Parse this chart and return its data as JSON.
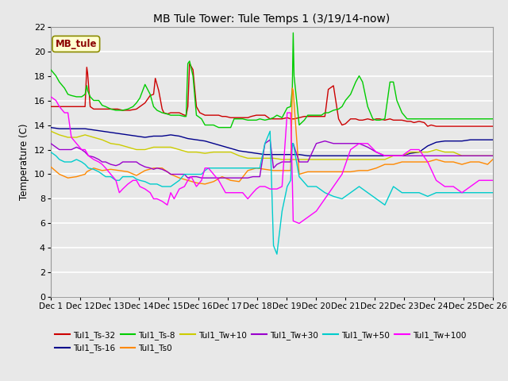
{
  "title": "MB Tule Tower: Tule Temps 1 (3/19/14-now)",
  "ylabel": "Temperature (C)",
  "xlim": [
    0,
    25.8
  ],
  "ylim": [
    0,
    22
  ],
  "yticks": [
    0,
    2,
    4,
    6,
    8,
    10,
    12,
    14,
    16,
    18,
    20,
    22
  ],
  "xtick_label_texts": [
    "Dec 1",
    "Dec 12",
    "Dec 13",
    "Dec 14",
    "Dec 15",
    "Dec 16",
    "Dec 17",
    "Dec 18",
    "Dec 19",
    "Dec 20",
    "Dec 21",
    "Dec 22",
    "Dec 23",
    "Dec 24",
    "Dec 25",
    "Dec 26"
  ],
  "bg_color": "#e8e8e8",
  "series": {
    "Tul1_Ts-32": {
      "color": "#cc0000",
      "lw": 1.0,
      "x": [
        0,
        0.5,
        0.9,
        1.2,
        1.5,
        1.7,
        2.0,
        2.1,
        2.15,
        2.3,
        2.5,
        2.7,
        3.0,
        3.2,
        3.5,
        3.6,
        3.9,
        4.2,
        4.4,
        4.6,
        5.0,
        5.2,
        5.5,
        5.8,
        6.0,
        6.1,
        6.3,
        6.5,
        6.6,
        6.8,
        7.0,
        7.2,
        7.5,
        7.8,
        7.9,
        8.0,
        8.1,
        8.3,
        8.5,
        8.7,
        9.0,
        9.2,
        9.5,
        9.8,
        10.0,
        10.2,
        10.5,
        10.7,
        11.0,
        11.2,
        11.5,
        11.7,
        12.0,
        12.2,
        12.5,
        12.8,
        13.0,
        13.2,
        13.5,
        13.8,
        14.0,
        14.2,
        14.5,
        14.8,
        15.0,
        15.2,
        15.5,
        15.8,
        16.0,
        16.2,
        16.5,
        16.8,
        17.0,
        17.2,
        17.5,
        17.8,
        18.0,
        18.2,
        18.5,
        18.8,
        19.0,
        19.2,
        19.5,
        19.8,
        20.0,
        20.2,
        20.5,
        20.8,
        21.0,
        21.2,
        21.5,
        21.8,
        22.0,
        22.2,
        22.5,
        22.8,
        23.0,
        23.2,
        23.5,
        23.8,
        24.0,
        24.2,
        24.5,
        24.8,
        25.0,
        25.2,
        25.5,
        25.8
      ],
      "y": [
        15.5,
        15.5,
        15.5,
        15.5,
        15.5,
        15.5,
        15.5,
        18.7,
        18.2,
        15.5,
        15.3,
        15.3,
        15.3,
        15.3,
        15.3,
        15.3,
        15.3,
        15.2,
        15.2,
        15.2,
        15.3,
        15.5,
        15.8,
        16.4,
        16.5,
        17.8,
        16.8,
        15.3,
        15.0,
        14.9,
        15.0,
        15.0,
        15.0,
        14.8,
        14.8,
        15.5,
        19.0,
        18.5,
        15.5,
        15.0,
        14.8,
        14.8,
        14.8,
        14.8,
        14.7,
        14.7,
        14.6,
        14.6,
        14.6,
        14.6,
        14.6,
        14.7,
        14.8,
        14.8,
        14.8,
        14.5,
        14.5,
        14.5,
        14.5,
        14.6,
        14.5,
        14.5,
        14.6,
        14.7,
        14.7,
        14.7,
        14.7,
        14.7,
        14.7,
        16.9,
        17.2,
        14.5,
        14.0,
        14.1,
        14.5,
        14.5,
        14.4,
        14.4,
        14.5,
        14.4,
        14.5,
        14.5,
        14.4,
        14.5,
        14.4,
        14.4,
        14.4,
        14.3,
        14.3,
        14.2,
        14.3,
        14.2,
        13.9,
        14.0,
        13.9,
        13.9,
        13.9,
        13.9,
        13.9,
        13.9,
        13.9,
        13.9,
        13.9,
        13.9,
        13.9,
        13.9,
        13.9,
        13.9
      ]
    },
    "Tul1_Ts-16": {
      "color": "#00008b",
      "lw": 1.0,
      "x": [
        0,
        0.5,
        1.0,
        1.5,
        2.0,
        2.5,
        3.0,
        3.5,
        4.0,
        4.5,
        5.0,
        5.5,
        6.0,
        6.5,
        7.0,
        7.5,
        8.0,
        8.5,
        9.0,
        9.5,
        10.0,
        10.5,
        11.0,
        11.5,
        12.0,
        12.5,
        13.0,
        13.5,
        14.0,
        14.5,
        15.0,
        15.5,
        16.0,
        16.5,
        17.0,
        17.5,
        18.0,
        18.5,
        19.0,
        19.5,
        20.0,
        20.5,
        21.0,
        21.5,
        22.0,
        22.5,
        23.0,
        23.5,
        24.0,
        24.5,
        25.0,
        25.5,
        25.8
      ],
      "y": [
        13.8,
        13.7,
        13.7,
        13.7,
        13.7,
        13.6,
        13.5,
        13.4,
        13.3,
        13.2,
        13.1,
        13.0,
        13.1,
        13.1,
        13.2,
        13.1,
        12.9,
        12.8,
        12.7,
        12.5,
        12.3,
        12.1,
        11.9,
        11.8,
        11.7,
        11.6,
        11.6,
        11.6,
        11.6,
        11.6,
        11.5,
        11.5,
        11.5,
        11.5,
        11.5,
        11.5,
        11.5,
        11.5,
        11.5,
        11.5,
        11.5,
        11.5,
        11.7,
        11.8,
        12.3,
        12.6,
        12.7,
        12.7,
        12.7,
        12.8,
        12.8,
        12.8,
        12.8
      ]
    },
    "Tul1_Ts-8": {
      "color": "#00cc00",
      "lw": 1.0,
      "x": [
        0,
        0.3,
        0.5,
        0.8,
        1.0,
        1.2,
        1.5,
        1.8,
        2.0,
        2.1,
        2.15,
        2.3,
        2.5,
        2.8,
        3.0,
        3.2,
        3.5,
        3.8,
        4.0,
        4.2,
        4.5,
        4.8,
        5.0,
        5.2,
        5.5,
        5.8,
        6.0,
        6.2,
        6.5,
        6.8,
        7.0,
        7.2,
        7.5,
        7.8,
        7.9,
        8.0,
        8.1,
        8.3,
        8.5,
        8.8,
        9.0,
        9.2,
        9.5,
        9.8,
        10.0,
        10.2,
        10.5,
        10.7,
        11.0,
        11.2,
        11.5,
        11.8,
        12.0,
        12.2,
        12.5,
        12.8,
        13.0,
        13.2,
        13.5,
        13.8,
        14.0,
        14.1,
        14.15,
        14.2,
        14.5,
        14.8,
        15.0,
        15.2,
        15.5,
        15.8,
        16.0,
        16.2,
        16.5,
        16.8,
        17.0,
        17.2,
        17.5,
        17.8,
        18.0,
        18.2,
        18.5,
        18.8,
        19.0,
        19.2,
        19.5,
        19.8,
        20.0,
        20.2,
        20.5,
        20.8,
        21.0,
        21.2,
        21.5,
        21.8,
        22.0,
        22.2,
        22.5,
        22.8,
        23.0,
        23.2,
        23.5,
        23.8,
        24.0,
        24.2,
        24.5,
        24.8,
        25.0,
        25.2,
        25.5,
        25.8
      ],
      "y": [
        18.5,
        18.0,
        17.5,
        17.0,
        16.5,
        16.4,
        16.3,
        16.3,
        16.5,
        17.2,
        16.8,
        16.3,
        16.0,
        16.0,
        15.6,
        15.5,
        15.3,
        15.2,
        15.2,
        15.2,
        15.3,
        15.5,
        15.8,
        16.2,
        17.3,
        16.5,
        15.5,
        15.2,
        15.0,
        14.9,
        14.8,
        14.8,
        14.8,
        14.7,
        14.7,
        19.0,
        19.2,
        18.0,
        14.8,
        14.5,
        14.0,
        14.0,
        14.0,
        13.8,
        13.8,
        13.8,
        13.8,
        14.5,
        14.5,
        14.5,
        14.4,
        14.4,
        14.4,
        14.5,
        14.4,
        14.5,
        14.6,
        14.8,
        14.6,
        15.4,
        15.5,
        17.0,
        21.5,
        18.0,
        14.0,
        14.4,
        14.8,
        14.8,
        14.8,
        14.8,
        15.0,
        15.0,
        15.2,
        15.3,
        15.5,
        16.0,
        16.5,
        17.5,
        18.0,
        17.5,
        15.5,
        14.5,
        14.4,
        14.4,
        14.5,
        17.5,
        17.5,
        16.0,
        15.0,
        14.5,
        14.5,
        14.5,
        14.5,
        14.5,
        14.5,
        14.5,
        14.5,
        14.5,
        14.5,
        14.5,
        14.5,
        14.5,
        14.5,
        14.5,
        14.5,
        14.5,
        14.5,
        14.5,
        14.5,
        14.5
      ]
    },
    "Tul1_Ts0": {
      "color": "#ff8800",
      "lw": 1.0,
      "x": [
        0,
        0.5,
        1.0,
        1.5,
        2.0,
        2.1,
        2.5,
        3.0,
        3.5,
        4.0,
        4.5,
        5.0,
        5.5,
        6.0,
        6.5,
        7.0,
        7.5,
        8.0,
        8.5,
        9.0,
        9.5,
        10.0,
        10.5,
        11.0,
        11.5,
        12.0,
        12.5,
        13.0,
        13.5,
        14.0,
        14.1,
        14.15,
        14.5,
        15.0,
        15.5,
        16.0,
        16.5,
        17.0,
        17.5,
        18.0,
        18.5,
        19.0,
        19.5,
        20.0,
        20.5,
        21.0,
        21.5,
        22.0,
        22.5,
        23.0,
        23.5,
        24.0,
        24.5,
        25.0,
        25.5,
        25.8
      ],
      "y": [
        10.6,
        10.0,
        9.7,
        9.8,
        10.0,
        10.2,
        10.5,
        10.3,
        10.4,
        10.3,
        10.2,
        9.9,
        10.3,
        10.5,
        10.5,
        10.0,
        9.7,
        9.5,
        9.3,
        9.2,
        9.4,
        9.8,
        9.5,
        9.4,
        10.3,
        10.5,
        10.4,
        10.3,
        10.3,
        10.3,
        17.0,
        16.8,
        10.0,
        10.2,
        10.2,
        10.2,
        10.2,
        10.2,
        10.2,
        10.3,
        10.3,
        10.5,
        10.8,
        10.8,
        11.0,
        11.0,
        11.0,
        11.0,
        11.2,
        11.0,
        11.0,
        10.8,
        11.0,
        11.0,
        10.8,
        11.2
      ]
    },
    "Tul1_Tw+10": {
      "color": "#cccc00",
      "lw": 1.0,
      "x": [
        0,
        0.5,
        1.0,
        1.5,
        2.0,
        2.5,
        3.0,
        3.5,
        4.0,
        4.5,
        5.0,
        5.5,
        6.0,
        6.5,
        7.0,
        7.5,
        8.0,
        8.5,
        9.0,
        9.5,
        10.0,
        10.5,
        11.0,
        11.5,
        12.0,
        12.5,
        13.0,
        13.5,
        14.0,
        14.5,
        15.0,
        15.5,
        16.0,
        16.5,
        17.0,
        17.5,
        18.0,
        18.5,
        19.0,
        19.5,
        20.0,
        20.5,
        21.0,
        21.5,
        22.0,
        22.5,
        23.0,
        23.5,
        24.0,
        24.5,
        25.0,
        25.5,
        25.8
      ],
      "y": [
        13.5,
        13.2,
        13.0,
        13.0,
        13.2,
        13.0,
        12.8,
        12.5,
        12.4,
        12.2,
        12.0,
        12.0,
        12.2,
        12.2,
        12.2,
        12.0,
        11.8,
        11.8,
        11.7,
        11.8,
        11.8,
        11.8,
        11.5,
        11.3,
        11.3,
        11.3,
        11.3,
        11.2,
        11.2,
        11.2,
        11.2,
        11.2,
        11.2,
        11.2,
        11.2,
        11.2,
        11.2,
        11.2,
        11.2,
        11.2,
        11.5,
        11.5,
        11.8,
        11.8,
        11.8,
        12.0,
        11.8,
        11.8,
        11.5,
        11.5,
        11.5,
        11.5,
        11.5
      ]
    },
    "Tul1_Tw+30": {
      "color": "#9900cc",
      "lw": 1.0,
      "x": [
        0,
        0.3,
        0.5,
        0.8,
        1.0,
        1.2,
        1.5,
        1.8,
        2.0,
        2.2,
        2.5,
        2.8,
        3.0,
        3.2,
        3.5,
        3.8,
        4.0,
        4.2,
        4.5,
        4.8,
        5.0,
        5.2,
        5.5,
        5.8,
        6.0,
        6.2,
        6.5,
        6.8,
        7.0,
        7.2,
        7.5,
        7.8,
        8.0,
        8.2,
        8.5,
        8.8,
        9.0,
        9.2,
        9.5,
        9.8,
        10.0,
        10.2,
        10.5,
        10.8,
        11.0,
        11.2,
        11.5,
        11.8,
        12.0,
        12.2,
        12.5,
        12.8,
        13.0,
        13.2,
        13.5,
        13.8,
        14.0,
        14.1,
        14.15,
        14.5,
        15.0,
        15.5,
        16.0,
        16.5,
        17.0,
        17.5,
        18.0,
        18.5,
        19.0,
        19.5,
        20.0,
        20.5,
        21.0,
        21.5,
        22.0,
        22.5,
        23.0,
        23.5,
        24.0,
        24.5,
        25.0,
        25.5,
        25.8
      ],
      "y": [
        12.5,
        12.2,
        12.0,
        12.0,
        12.0,
        12.0,
        12.2,
        12.0,
        11.8,
        11.5,
        11.4,
        11.2,
        11.0,
        11.0,
        10.8,
        10.7,
        10.8,
        11.0,
        11.0,
        11.0,
        11.0,
        10.8,
        10.6,
        10.5,
        10.4,
        10.5,
        10.4,
        10.2,
        10.0,
        10.0,
        10.0,
        10.0,
        9.7,
        9.8,
        9.8,
        9.7,
        9.7,
        9.7,
        9.7,
        9.7,
        9.7,
        9.7,
        9.7,
        9.7,
        9.7,
        9.7,
        9.7,
        9.8,
        9.8,
        9.8,
        12.5,
        12.8,
        10.5,
        10.8,
        11.0,
        11.0,
        11.0,
        12.5,
        12.5,
        11.0,
        11.0,
        12.5,
        12.7,
        12.5,
        12.5,
        12.5,
        12.5,
        12.2,
        11.8,
        11.5,
        11.5,
        11.5,
        11.5,
        11.5,
        11.5,
        11.5,
        11.5,
        11.5,
        11.5,
        11.5,
        11.5,
        11.5,
        11.5
      ]
    },
    "Tul1_Tw+50": {
      "color": "#00cccc",
      "lw": 1.0,
      "x": [
        0,
        0.3,
        0.5,
        0.8,
        1.0,
        1.2,
        1.5,
        1.8,
        2.0,
        2.2,
        2.5,
        2.8,
        3.0,
        3.2,
        3.5,
        3.8,
        4.0,
        4.2,
        4.5,
        4.8,
        5.0,
        5.2,
        5.5,
        5.8,
        6.0,
        6.2,
        6.5,
        6.8,
        7.0,
        7.2,
        7.5,
        7.8,
        8.0,
        8.2,
        8.5,
        8.8,
        9.0,
        9.2,
        9.5,
        9.8,
        10.0,
        10.2,
        10.5,
        10.8,
        11.0,
        11.2,
        11.5,
        11.8,
        12.0,
        12.2,
        12.5,
        12.8,
        13.0,
        13.2,
        13.5,
        13.8,
        14.0,
        14.1,
        14.15,
        14.5,
        15.0,
        15.5,
        16.0,
        16.5,
        17.0,
        17.5,
        18.0,
        18.5,
        19.0,
        19.5,
        20.0,
        20.5,
        21.0,
        21.5,
        22.0,
        22.5,
        23.0,
        23.5,
        24.0,
        24.5,
        25.0,
        25.5,
        25.8
      ],
      "y": [
        11.8,
        11.5,
        11.2,
        11.0,
        11.0,
        11.0,
        11.2,
        11.0,
        10.8,
        10.5,
        10.4,
        10.2,
        10.0,
        9.8,
        9.8,
        9.5,
        9.5,
        9.8,
        9.8,
        9.8,
        9.6,
        9.5,
        9.4,
        9.2,
        9.2,
        9.2,
        9.0,
        9.0,
        9.0,
        9.2,
        9.5,
        10.0,
        10.0,
        10.0,
        10.0,
        10.0,
        10.3,
        10.5,
        10.5,
        10.5,
        10.5,
        10.5,
        10.5,
        10.5,
        10.5,
        10.5,
        10.5,
        10.5,
        10.5,
        10.5,
        12.5,
        13.5,
        4.2,
        3.5,
        7.0,
        9.0,
        9.5,
        12.5,
        12.5,
        9.8,
        9.0,
        9.0,
        8.5,
        8.2,
        8.0,
        8.5,
        9.0,
        8.5,
        8.0,
        7.5,
        9.0,
        8.5,
        8.5,
        8.5,
        8.2,
        8.5,
        8.5,
        8.5,
        8.5,
        8.5,
        8.5,
        8.5,
        8.5
      ]
    },
    "Tul1_Tw+100": {
      "color": "#ff00ff",
      "lw": 1.0,
      "x": [
        0,
        0.3,
        0.5,
        0.8,
        1.0,
        1.2,
        1.5,
        1.8,
        2.0,
        2.2,
        2.5,
        2.8,
        3.0,
        3.2,
        3.5,
        3.8,
        4.0,
        4.2,
        4.5,
        4.8,
        5.0,
        5.2,
        5.5,
        5.8,
        6.0,
        6.2,
        6.5,
        6.8,
        7.0,
        7.2,
        7.5,
        7.8,
        8.0,
        8.2,
        8.5,
        8.8,
        9.0,
        9.2,
        9.5,
        9.8,
        10.0,
        10.2,
        10.5,
        10.8,
        11.0,
        11.2,
        11.5,
        11.8,
        12.0,
        12.2,
        12.5,
        12.8,
        13.0,
        13.2,
        13.5,
        13.8,
        14.0,
        14.1,
        14.15,
        14.5,
        15.0,
        15.5,
        16.0,
        16.5,
        17.0,
        17.5,
        18.0,
        18.5,
        19.0,
        19.5,
        20.0,
        20.5,
        21.0,
        21.5,
        22.0,
        22.5,
        23.0,
        23.5,
        24.0,
        24.5,
        25.0,
        25.5,
        25.8
      ],
      "y": [
        16.3,
        16.0,
        15.5,
        15.0,
        15.0,
        13.0,
        12.5,
        12.0,
        12.0,
        11.5,
        11.2,
        11.0,
        10.8,
        10.5,
        10.0,
        9.5,
        8.5,
        8.8,
        9.2,
        9.5,
        9.5,
        9.0,
        8.8,
        8.5,
        8.0,
        8.0,
        7.8,
        7.5,
        8.5,
        8.0,
        8.8,
        9.0,
        9.5,
        9.8,
        9.0,
        9.5,
        10.5,
        10.5,
        10.0,
        9.5,
        9.0,
        8.5,
        8.5,
        8.5,
        8.5,
        8.5,
        8.0,
        8.5,
        8.8,
        9.0,
        9.0,
        8.8,
        8.8,
        8.8,
        9.0,
        15.0,
        15.0,
        9.5,
        6.2,
        6.0,
        6.5,
        7.0,
        8.0,
        9.0,
        10.0,
        12.0,
        12.5,
        12.5,
        11.8,
        11.5,
        11.5,
        11.5,
        12.0,
        12.0,
        11.0,
        9.5,
        9.0,
        9.0,
        8.5,
        9.0,
        9.5,
        9.5,
        9.5
      ]
    }
  },
  "legend_entries": [
    {
      "label": "Tul1_Ts-32",
      "color": "#cc0000"
    },
    {
      "label": "Tul1_Ts-16",
      "color": "#00008b"
    },
    {
      "label": "Tul1_Ts-8",
      "color": "#00cc00"
    },
    {
      "label": "Tul1_Ts0",
      "color": "#ff8800"
    },
    {
      "label": "Tul1_Tw+10",
      "color": "#cccc00"
    },
    {
      "label": "Tul1_Tw+30",
      "color": "#9900cc"
    },
    {
      "label": "Tul1_Tw+50",
      "color": "#00cccc"
    },
    {
      "label": "Tul1_Tw+100",
      "color": "#ff00ff"
    }
  ]
}
